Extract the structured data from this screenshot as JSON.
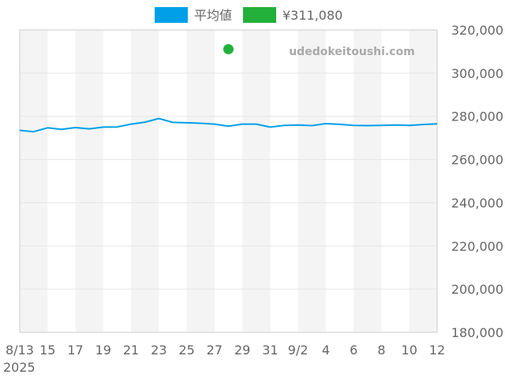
{
  "chart_data": {
    "type": "line",
    "watermark": "udedokeitoushi.com",
    "legend": {
      "position": "top",
      "entries": [
        {
          "label": "平均値",
          "color": "#00a0e9"
        },
        {
          "label": "¥311,080",
          "color": "#22b03a"
        }
      ]
    },
    "x_ticks": [
      "8/13",
      "15",
      "17",
      "19",
      "21",
      "23",
      "25",
      "27",
      "29",
      "31",
      "9/2",
      "4",
      "6",
      "8",
      "10",
      "12"
    ],
    "x_year_label": "2025",
    "x_range": [
      "2025-08-13",
      "2025-09-12"
    ],
    "y_ticks": [
      "320,000",
      "300,000",
      "280,000",
      "260,000",
      "240,000",
      "220,000",
      "200,000",
      "180,000"
    ],
    "ylim": [
      180000,
      320000
    ],
    "y_axis_side": "right",
    "grid": true,
    "band_color": "#f4f4f4",
    "series": [
      {
        "name": "平均値",
        "color": "#00a0e9",
        "x": [
          "2025-08-13",
          "2025-08-14",
          "2025-08-15",
          "2025-08-16",
          "2025-08-17",
          "2025-08-18",
          "2025-08-19",
          "2025-08-20",
          "2025-08-21",
          "2025-08-22",
          "2025-08-23",
          "2025-08-24",
          "2025-08-25",
          "2025-08-26",
          "2025-08-27",
          "2025-08-28",
          "2025-08-29",
          "2025-08-30",
          "2025-08-31",
          "2025-09-01",
          "2025-09-02",
          "2025-09-03",
          "2025-09-04",
          "2025-09-05",
          "2025-09-06",
          "2025-09-07",
          "2025-09-08",
          "2025-09-09",
          "2025-09-10",
          "2025-09-11",
          "2025-09-12"
        ],
        "values": [
          273500,
          272900,
          274700,
          274000,
          274800,
          274200,
          275000,
          275100,
          276400,
          277300,
          279000,
          277200,
          277000,
          276800,
          276400,
          275400,
          276400,
          276400,
          275000,
          275800,
          276000,
          275700,
          276600,
          276300,
          275800,
          275700,
          275800,
          276000,
          275800,
          276200,
          276500
        ]
      },
      {
        "name": "¥311,080",
        "color": "#22b03a",
        "type": "point",
        "x": [
          "2025-08-28"
        ],
        "values": [
          311080
        ]
      }
    ]
  }
}
